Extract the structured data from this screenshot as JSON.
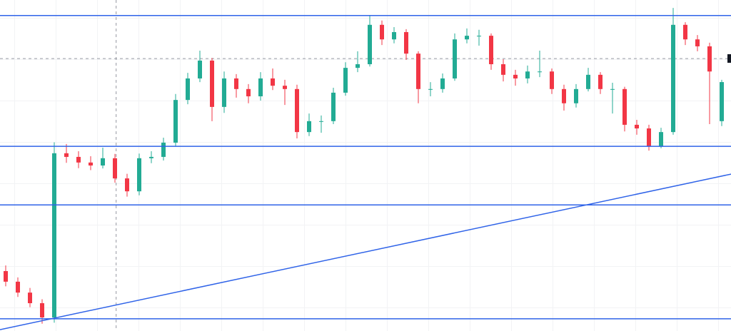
{
  "chart_data": {
    "type": "candlestick",
    "ylim": [
      0,
      100
    ],
    "up_color": "#22ab94",
    "down_color": "#f23645",
    "level_color": "#2f63e8",
    "grid": true,
    "open": [
      18.1,
      14.9,
      11.6,
      8.4,
      4.1,
      53.7,
      52.6,
      50.9,
      50.0,
      52.2,
      46.1,
      42.2,
      52.2,
      52.6,
      56.9,
      69.8,
      76.3,
      81.7,
      67.7,
      76.3,
      73.1,
      70.9,
      76.3,
      74.1,
      73.1,
      60.1,
      63.4,
      63.4,
      72.0,
      79.5,
      80.6,
      92.5,
      88.1,
      90.3,
      83.8,
      73.1,
      73.1,
      76.3,
      88.1,
      89.2,
      89.2,
      80.6,
      77.4,
      76.3,
      78.4,
      78.4,
      73.1,
      68.8,
      73.1,
      77.4,
      73.1,
      73.1,
      62.3,
      61.2,
      55.8,
      60.1,
      92.5,
      88.1,
      86.0,
      63.4
    ],
    "high": [
      19.8,
      16.2,
      13.0,
      9.6,
      57.0,
      56.5,
      54.3,
      52.8,
      55.4,
      53.5,
      47.5,
      53.6,
      54.3,
      58.4,
      71.6,
      78.0,
      84.7,
      82.5,
      78.4,
      77.6,
      74.6,
      78.2,
      79.3,
      75.9,
      74.4,
      65.7,
      65.1,
      73.5,
      81.2,
      84.5,
      95.3,
      93.8,
      91.8,
      91.2,
      84.5,
      75.2,
      77.8,
      89.9,
      91.4,
      91.0,
      89.9,
      82.1,
      78.9,
      80.2,
      84.7,
      79.3,
      74.4,
      74.6,
      79.5,
      78.2,
      75.0,
      73.8,
      63.8,
      62.3,
      61.4,
      97.6,
      93.3,
      89.4,
      87.1,
      75.9
    ],
    "low": [
      13.5,
      10.3,
      7.2,
      2.2,
      2.5,
      50.8,
      49.2,
      48.6,
      49.1,
      44.8,
      40.6,
      41.0,
      50.7,
      51.5,
      55.9,
      68.5,
      75.2,
      63.4,
      65.9,
      70.5,
      68.8,
      69.6,
      72.8,
      68.3,
      58.2,
      58.9,
      59.9,
      62.5,
      71.1,
      78.2,
      79.9,
      86.4,
      86.9,
      81.9,
      68.8,
      70.9,
      72.0,
      75.6,
      86.9,
      86.2,
      78.9,
      75.4,
      74.1,
      74.8,
      76.7,
      71.6,
      66.6,
      67.5,
      72.4,
      71.6,
      65.7,
      60.3,
      59.3,
      54.5,
      55.2,
      59.3,
      86.4,
      84.5,
      62.5,
      61.9
    ],
    "close": [
      14.9,
      11.6,
      8.4,
      4.1,
      53.7,
      52.6,
      50.9,
      50.0,
      52.2,
      46.1,
      42.2,
      52.2,
      52.6,
      56.9,
      69.8,
      76.3,
      81.7,
      67.7,
      76.3,
      73.1,
      70.9,
      76.3,
      74.1,
      73.1,
      60.1,
      63.4,
      63.4,
      72.0,
      79.5,
      80.6,
      92.5,
      88.1,
      90.3,
      83.8,
      73.1,
      73.1,
      76.3,
      88.1,
      89.2,
      89.2,
      80.6,
      77.4,
      76.3,
      78.4,
      78.4,
      73.1,
      68.8,
      73.1,
      77.4,
      73.1,
      73.1,
      62.3,
      61.2,
      55.8,
      60.1,
      92.5,
      88.1,
      86.0,
      78.4,
      75.2
    ],
    "levels": [
      95.3,
      55.8,
      38.1,
      3.7
    ],
    "trend_line": [
      0.4,
      47.4
    ],
    "crosshair": {
      "x": 9.1,
      "y": 82.3
    }
  }
}
